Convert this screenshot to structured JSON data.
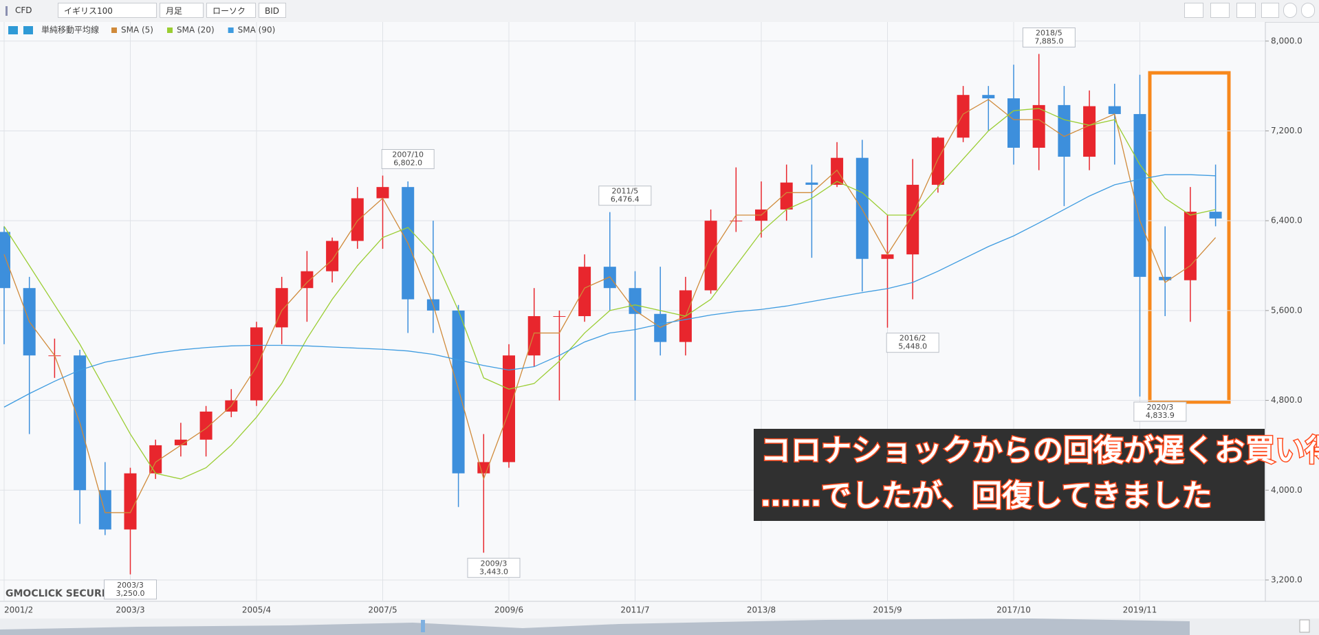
{
  "toolbar": {
    "market": "CFD",
    "symbol": "イギリス100",
    "timeframe": "月足",
    "chart_style": "ローソク",
    "price_type": "BID"
  },
  "watermark": "GMOCLICK SECURITIES",
  "callout": {
    "lines": [
      "コロナショックからの回復が遅くお買い得",
      "……でしたが、回復してきました"
    ]
  },
  "chart_data": {
    "type": "candlestick",
    "x": [
      "2001/2",
      "2001/7",
      "2001/12",
      "2002/5",
      "2002/10",
      "2003/3",
      "2003/8",
      "2004/1",
      "2004/6",
      "2004/11",
      "2005/4",
      "2005/9",
      "2006/2",
      "2006/7",
      "2006/12",
      "2007/5",
      "2007/10",
      "2008/3",
      "2008/8",
      "2009/1",
      "2009/6",
      "2009/11",
      "2010/4",
      "2010/9",
      "2011/2",
      "2011/7",
      "2011/12",
      "2012/5",
      "2012/10",
      "2013/3",
      "2013/8",
      "2014/1",
      "2014/6",
      "2014/11",
      "2015/4",
      "2015/9",
      "2016/2",
      "2016/7",
      "2016/12",
      "2017/5",
      "2017/10",
      "2018/3",
      "2018/8",
      "2019/1",
      "2019/6",
      "2019/11",
      "2020/4",
      "2020/9",
      "2021/2"
    ],
    "open": [
      6300,
      5800,
      5200,
      5200,
      4000,
      3650,
      4150,
      4400,
      4450,
      4700,
      4800,
      5450,
      5800,
      5950,
      6220,
      6600,
      6700,
      5700,
      5600,
      4150,
      4250,
      5200,
      5550,
      5550,
      5990,
      5800,
      5570,
      5320,
      5780,
      6400,
      6400,
      6500,
      6740,
      6720,
      6960,
      6060,
      6100,
      6720,
      7140,
      7520,
      7490,
      7050,
      7430,
      6970,
      7420,
      7350,
      5900,
      5870,
      6480
    ],
    "high": [
      6350,
      5900,
      5350,
      5250,
      4250,
      4200,
      4450,
      4600,
      4750,
      4900,
      5500,
      5900,
      6130,
      6250,
      6700,
      6802,
      6750,
      6400,
      5650,
      4500,
      5300,
      5800,
      5600,
      6100,
      6476.4,
      5950,
      5990,
      5900,
      6500,
      6875,
      6750,
      6900,
      6900,
      7100,
      7120,
      6450,
      6950,
      7150,
      7600,
      7600,
      7790,
      7885,
      7600,
      7560,
      7620,
      7700,
      6350,
      6700,
      6900
    ],
    "low": [
      5300,
      4500,
      5000,
      3700,
      3600,
      3250,
      4100,
      4300,
      4300,
      4650,
      4750,
      5300,
      5500,
      5850,
      6150,
      6150,
      5400,
      5400,
      3850,
      3443,
      4200,
      5100,
      4800,
      5500,
      5600,
      4800,
      5200,
      5200,
      5750,
      6300,
      6250,
      6400,
      6070,
      6700,
      5770,
      5448,
      5700,
      6650,
      7100,
      7200,
      6900,
      6850,
      6530,
      6850,
      6900,
      4833.9,
      5550,
      5500,
      6350
    ],
    "close": [
      5800,
      5200,
      5200,
      4000,
      3650,
      4150,
      4400,
      4450,
      4700,
      4800,
      5450,
      5800,
      5950,
      6220,
      6600,
      6700,
      5700,
      5600,
      4150,
      4250,
      5200,
      5550,
      5550,
      5990,
      5800,
      5570,
      5320,
      5780,
      6400,
      6400,
      6500,
      6740,
      6720,
      6960,
      6060,
      6100,
      6720,
      7140,
      7520,
      7490,
      7050,
      7430,
      6970,
      7420,
      7350,
      5900,
      5870,
      6480,
      6420
    ],
    "up_color": "#e8262d",
    "down_color": "#3d8fdc",
    "indicator_label": "単純移動平均線",
    "series": [
      {
        "name": "SMA (5)",
        "color": "#d08a3a",
        "values": [
          6100,
          5500,
          5200,
          4600,
          3800,
          3800,
          4250,
          4400,
          4550,
          4750,
          5100,
          5600,
          5850,
          6050,
          6400,
          6600,
          6200,
          5650,
          4900,
          4100,
          4700,
          5400,
          5400,
          5800,
          5900,
          5600,
          5450,
          5550,
          6100,
          6450,
          6450,
          6650,
          6650,
          6850,
          6500,
          6100,
          6450,
          6950,
          7350,
          7480,
          7300,
          7300,
          7150,
          7250,
          7350,
          6400,
          5850,
          6000,
          6250
        ]
      },
      {
        "name": "SMA (20)",
        "color": "#9acd32",
        "values": [
          6350,
          6000,
          5650,
          5300,
          4900,
          4500,
          4150,
          4100,
          4200,
          4400,
          4650,
          4950,
          5350,
          5700,
          6000,
          6250,
          6340,
          6100,
          5600,
          5000,
          4900,
          4950,
          5150,
          5400,
          5600,
          5650,
          5600,
          5550,
          5700,
          6000,
          6300,
          6500,
          6600,
          6750,
          6650,
          6450,
          6450,
          6700,
          6950,
          7200,
          7380,
          7400,
          7300,
          7250,
          7300,
          6900,
          6600,
          6450,
          6500
        ]
      },
      {
        "name": "SMA (90)",
        "color": "#3d9be0",
        "values": [
          4740,
          4860,
          4970,
          5070,
          5140,
          5180,
          5220,
          5250,
          5270,
          5285,
          5290,
          5290,
          5285,
          5275,
          5265,
          5255,
          5240,
          5210,
          5160,
          5110,
          5070,
          5100,
          5200,
          5320,
          5400,
          5430,
          5480,
          5520,
          5560,
          5590,
          5610,
          5640,
          5680,
          5720,
          5760,
          5795,
          5850,
          5950,
          6060,
          6170,
          6265,
          6380,
          6500,
          6620,
          6720,
          6770,
          6810,
          6810,
          6800
        ]
      }
    ],
    "annotations": [
      {
        "date": "2003/3",
        "value": 3250,
        "value_label": "3,250.0",
        "kind": "low"
      },
      {
        "date": "2007/10",
        "value": 6802,
        "value_label": "6,802.0",
        "kind": "high"
      },
      {
        "date": "2009/3",
        "value": 3443,
        "value_label": "3,443.0",
        "kind": "low"
      },
      {
        "date": "2011/5",
        "value": 6476.4,
        "value_label": "6,476.4",
        "kind": "high"
      },
      {
        "date": "2016/2",
        "value": 5448,
        "value_label": "5,448.0",
        "kind": "low"
      },
      {
        "date": "2018/5",
        "value": 7885,
        "value_label": "7,885.0",
        "kind": "high"
      },
      {
        "date": "2020/3",
        "value": 4833.9,
        "value_label": "4,833.9",
        "kind": "low"
      }
    ],
    "ylim": [
      3010,
      8170
    ],
    "yticks": [
      {
        "value": 3200,
        "label": "3,200.0"
      },
      {
        "value": 4000,
        "label": "4,000.0"
      },
      {
        "value": 4800,
        "label": "4,800.0"
      },
      {
        "value": 5600,
        "label": "5,600.0"
      },
      {
        "value": 6400,
        "label": "6,400.0"
      },
      {
        "value": 7200,
        "label": "7,200.0"
      },
      {
        "value": 8000,
        "label": "8,000.0"
      }
    ],
    "grid": true
  }
}
